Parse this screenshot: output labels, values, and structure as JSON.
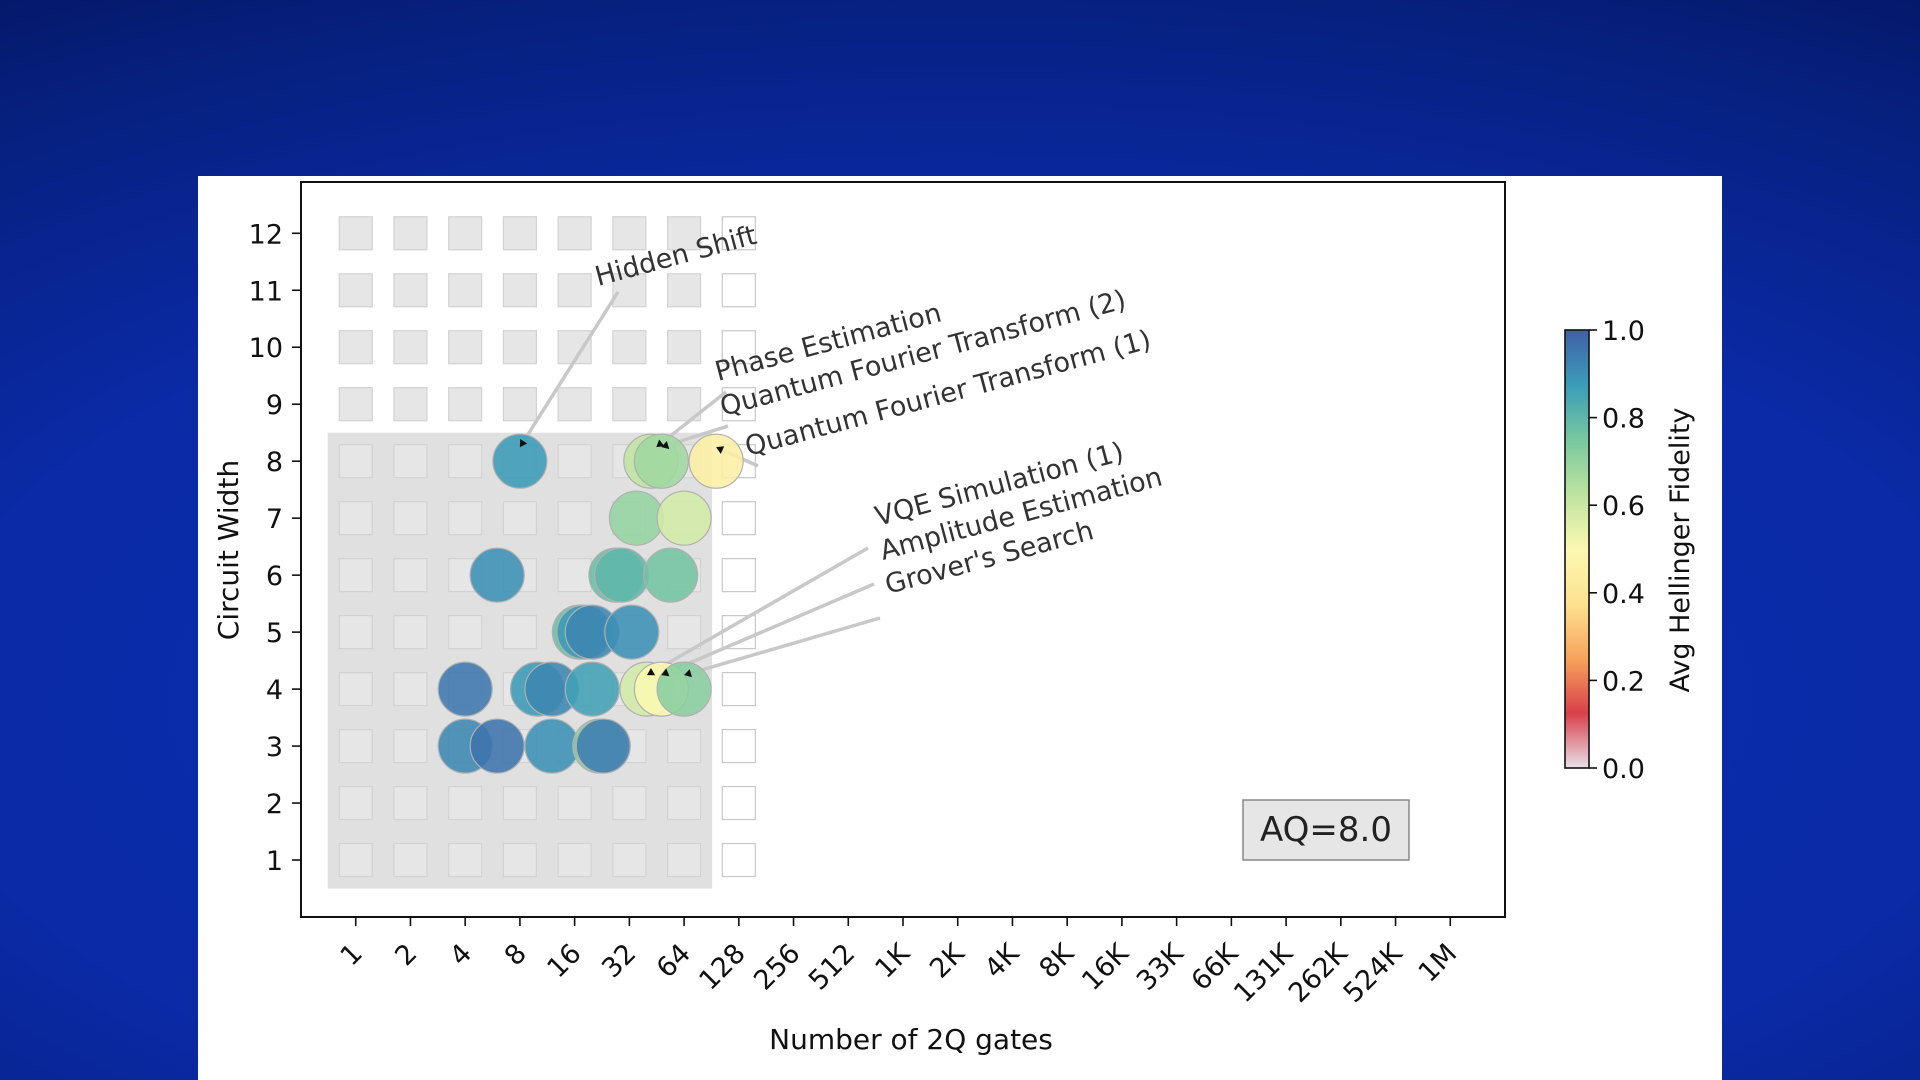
{
  "chart_data": {
    "type": "scatter",
    "title": "",
    "xlabel": "Number of 2Q gates",
    "ylabel": "Circuit Width",
    "x_scale": "log2",
    "x_tick_values": [
      1,
      2,
      4,
      8,
      16,
      32,
      64,
      128,
      256,
      512,
      1024,
      2048,
      4096,
      8192,
      16384,
      32768,
      65536,
      131072,
      262144,
      524288,
      1048576
    ],
    "x_tick_labels": [
      "1",
      "2",
      "4",
      "8",
      "16",
      "32",
      "64",
      "128",
      "256",
      "512",
      "1K",
      "2K",
      "4K",
      "8K",
      "16K",
      "33K",
      "66K",
      "131K",
      "262K",
      "524K",
      "1M"
    ],
    "y_ticks": [
      1,
      2,
      3,
      4,
      5,
      6,
      7,
      8,
      9,
      10,
      11,
      12
    ],
    "xlim": [
      0.5,
      2097152
    ],
    "ylim": [
      0,
      12.9
    ],
    "grid": false,
    "aq_label": "AQ=8.0",
    "aq_region": {
      "max_gates": 64,
      "max_width": 8
    },
    "grid_squares": {
      "filled_max_x_gates": 64,
      "outline_x_gates": 128,
      "rows": 12
    },
    "colorbar": {
      "label": "Avg Hellinger Fidelity",
      "min": 0.0,
      "max": 1.0,
      "ticks": [
        "0.0",
        "0.2",
        "0.4",
        "0.6",
        "0.8",
        "1.0"
      ],
      "colors": [
        "#e8e0e8",
        "#d9404a",
        "#f7a35c",
        "#fde290",
        "#fbf8b0",
        "#bde3a0",
        "#78c8a0",
        "#3a9cb8",
        "#4060a8"
      ]
    },
    "points": [
      {
        "x": 8,
        "y": 8,
        "fidelity": 0.88
      },
      {
        "x": 42,
        "y": 8,
        "fidelity": 0.62
      },
      {
        "x": 48,
        "y": 8,
        "fidelity": 0.68
      },
      {
        "x": 96,
        "y": 8,
        "fidelity": 0.45
      },
      {
        "x": 35,
        "y": 7,
        "fidelity": 0.7
      },
      {
        "x": 64,
        "y": 7,
        "fidelity": 0.58
      },
      {
        "x": 6,
        "y": 6,
        "fidelity": 0.9
      },
      {
        "x": 27,
        "y": 6,
        "fidelity": 0.78
      },
      {
        "x": 29,
        "y": 6,
        "fidelity": 0.8
      },
      {
        "x": 54,
        "y": 6,
        "fidelity": 0.76
      },
      {
        "x": 17,
        "y": 5,
        "fidelity": 0.78
      },
      {
        "x": 18,
        "y": 5,
        "fidelity": 0.88
      },
      {
        "x": 20,
        "y": 5,
        "fidelity": 0.92
      },
      {
        "x": 33,
        "y": 5,
        "fidelity": 0.9
      },
      {
        "x": 4,
        "y": 4,
        "fidelity": 0.95
      },
      {
        "x": 10,
        "y": 4,
        "fidelity": 0.88
      },
      {
        "x": 12,
        "y": 4,
        "fidelity": 0.92
      },
      {
        "x": 20,
        "y": 4,
        "fidelity": 0.86
      },
      {
        "x": 40,
        "y": 4,
        "fidelity": 0.58
      },
      {
        "x": 48,
        "y": 4,
        "fidelity": 0.5
      },
      {
        "x": 64,
        "y": 4,
        "fidelity": 0.72
      },
      {
        "x": 4,
        "y": 3,
        "fidelity": 0.92
      },
      {
        "x": 6,
        "y": 3,
        "fidelity": 0.96
      },
      {
        "x": 12,
        "y": 3,
        "fidelity": 0.9
      },
      {
        "x": 22,
        "y": 3,
        "fidelity": 0.72
      },
      {
        "x": 23,
        "y": 3,
        "fidelity": 0.94
      }
    ],
    "annotations": [
      {
        "text": "Hidden Shift",
        "x": 8,
        "y": 8
      },
      {
        "text": "Phase Estimation",
        "x": 45,
        "y": 8
      },
      {
        "text": "Quantum Fourier Transform (2)",
        "x": 48,
        "y": 8
      },
      {
        "text": "Quantum Fourier Transform (1)",
        "x": 96,
        "y": 8
      },
      {
        "text": "VQE Simulation (1)",
        "x": 40,
        "y": 4
      },
      {
        "text": "Amplitude Estimation",
        "x": 48,
        "y": 4
      },
      {
        "text": "Grover's Search",
        "x": 64,
        "y": 4
      }
    ]
  }
}
